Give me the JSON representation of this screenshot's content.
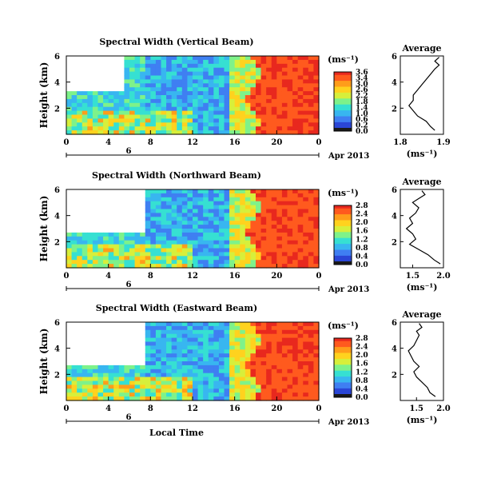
{
  "figure": {
    "x_axis_title": "Local Time",
    "colorbar_label": "(ms⁻¹)",
    "average_title": "Average",
    "average_unit": "(ms⁻¹)",
    "date_label": "Apr 2013",
    "day_label": "6"
  },
  "colors": {
    "colormap": [
      "#241a8c",
      "#2b46d6",
      "#3f7ff2",
      "#38b6f0",
      "#36e0d2",
      "#7ef28a",
      "#d7ef3b",
      "#ffd21e",
      "#ff9d1a",
      "#ff5a1e",
      "#e8281e"
    ]
  },
  "chart_data": [
    {
      "type": "heatmap",
      "title": "Spectral Width (Vertical Beam)",
      "xlabel": "",
      "ylabel": "Height (km)",
      "xlim": [
        0,
        24
      ],
      "ylim": [
        0,
        6
      ],
      "x_ticks": [
        "0",
        "4",
        "8",
        "12",
        "16",
        "20",
        "0"
      ],
      "y_ticks": [
        "6",
        "4",
        "2"
      ],
      "colorbar": {
        "ticks": [
          "3.6",
          "3.4",
          "3.0",
          "2.6",
          "2.2",
          "1.8",
          "1.4",
          "1.0",
          "0.6",
          "0.2",
          "0.0"
        ]
      },
      "average_profile": {
        "title": "Average",
        "xlabel": "(ms⁻¹)",
        "x_ticks": [
          "1.8",
          "1.9"
        ],
        "y_ticks": [
          "6",
          "4",
          "2"
        ],
        "xlim": [
          1.8,
          1.9
        ],
        "x": [
          1.88,
          1.87,
          1.86,
          1.84,
          1.83,
          1.82,
          1.83,
          1.83,
          1.84,
          1.85,
          1.86,
          1.87,
          1.88,
          1.89,
          1.88,
          1.89
        ],
        "y": [
          0.3,
          0.6,
          1.0,
          1.4,
          1.8,
          2.2,
          2.6,
          3.0,
          3.4,
          3.8,
          4.2,
          4.6,
          5.0,
          5.3,
          5.6,
          5.9
        ]
      }
    },
    {
      "type": "heatmap",
      "title": "Spectral Width (Northward Beam)",
      "xlabel": "",
      "ylabel": "Height (km)",
      "xlim": [
        0,
        24
      ],
      "ylim": [
        0,
        6
      ],
      "x_ticks": [
        "0",
        "4",
        "8",
        "12",
        "16",
        "20",
        "0"
      ],
      "y_ticks": [
        "6",
        "4",
        "2"
      ],
      "colorbar": {
        "ticks": [
          "2.8",
          "2.4",
          "2.0",
          "1.6",
          "1.2",
          "0.8",
          "0.4",
          "0.0"
        ]
      },
      "average_profile": {
        "title": "Average",
        "xlabel": "(ms⁻¹)",
        "x_ticks": [
          "1.5",
          "2.0"
        ],
        "y_ticks": [
          "6",
          "4",
          "2"
        ],
        "xlim": [
          1.3,
          2.0
        ],
        "x": [
          1.95,
          1.85,
          1.75,
          1.6,
          1.45,
          1.55,
          1.5,
          1.4,
          1.5,
          1.45,
          1.55,
          1.6,
          1.5,
          1.6,
          1.7,
          1.65
        ],
        "y": [
          0.3,
          0.6,
          1.0,
          1.4,
          1.8,
          2.2,
          2.6,
          3.0,
          3.4,
          3.8,
          4.2,
          4.6,
          5.0,
          5.3,
          5.6,
          5.9
        ]
      }
    },
    {
      "type": "heatmap",
      "title": "Spectral Width (Eastward Beam)",
      "xlabel": "Local Time",
      "ylabel": "Height (km)",
      "xlim": [
        0,
        24
      ],
      "ylim": [
        0,
        6
      ],
      "x_ticks": [
        "0",
        "4",
        "8",
        "12",
        "16",
        "20",
        "0"
      ],
      "y_ticks": [
        "6",
        "4",
        "2"
      ],
      "colorbar": {
        "ticks": [
          "2.8",
          "2.4",
          "2.0",
          "1.6",
          "1.2",
          "0.8",
          "0.4",
          "0.0"
        ]
      },
      "average_profile": {
        "title": "Average",
        "xlabel": "(ms⁻¹)",
        "x_ticks": [
          "1.5",
          "2.0"
        ],
        "y_ticks": [
          "6",
          "4",
          "2"
        ],
        "xlim": [
          1.2,
          2.0
        ],
        "x": [
          1.85,
          1.75,
          1.7,
          1.6,
          1.5,
          1.45,
          1.55,
          1.45,
          1.4,
          1.35,
          1.45,
          1.5,
          1.55,
          1.5,
          1.6,
          1.55
        ],
        "y": [
          0.3,
          0.6,
          1.0,
          1.4,
          1.8,
          2.2,
          2.6,
          3.0,
          3.4,
          3.8,
          4.2,
          4.6,
          5.0,
          5.3,
          5.6,
          5.9
        ]
      }
    }
  ]
}
